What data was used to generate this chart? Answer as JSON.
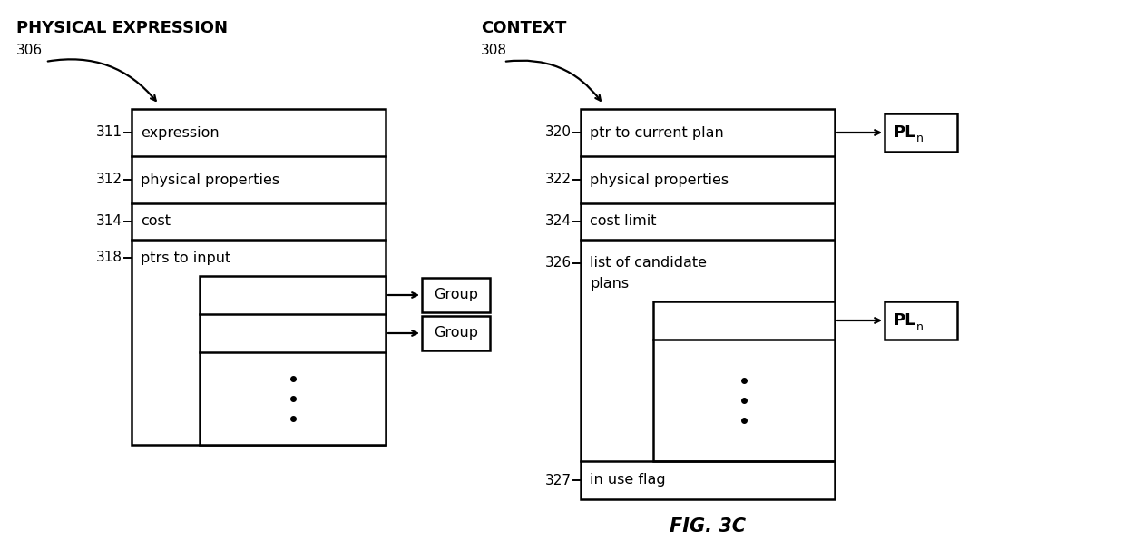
{
  "bg_color": "#ffffff",
  "title": "FIG. 3C",
  "phys_expr_label": "PHYSICAL EXPRESSION",
  "phys_expr_num": "306",
  "context_label": "CONTEXT",
  "context_num": "308",
  "fig_w": 12.4,
  "fig_h": 6.08,
  "lw": 1.8
}
